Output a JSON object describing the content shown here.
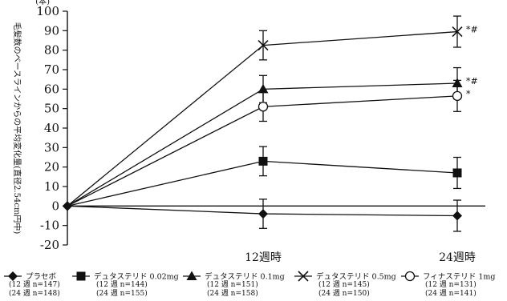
{
  "chart_data": {
    "type": "line",
    "title": "",
    "ylabel": "毛髪数のベースラインからの平均変化量(直径2.54cm円中)",
    "yunit": "(本)",
    "ylim": [
      -20,
      100
    ],
    "yticks": [
      -20,
      -10,
      0,
      10,
      20,
      30,
      40,
      50,
      60,
      70,
      80,
      90,
      100
    ],
    "x": [
      "",
      "12週時",
      "24週時"
    ],
    "grid": false,
    "legend_position": "bottom",
    "series": [
      {
        "name": "プラセボ",
        "marker": "diamond",
        "values": [
          0,
          -4,
          -5
        ],
        "errors": [
          0,
          7.5,
          8
        ],
        "n_labels": [
          "(12 週 n=147)",
          "(24 週 n=148)"
        ],
        "annotation": ""
      },
      {
        "name": "デュタステリド 0.02mg",
        "marker": "square",
        "values": [
          0,
          23,
          17
        ],
        "errors": [
          0,
          7.5,
          8
        ],
        "n_labels": [
          "(12 週 n=144)",
          "(24 週 n=155)"
        ],
        "annotation": ""
      },
      {
        "name": "デュタステリド 0.1mg",
        "marker": "triangle",
        "values": [
          0,
          60,
          63
        ],
        "errors": [
          0,
          7,
          8
        ],
        "n_labels": [
          "(12 週 n=151)",
          "(24 週 n=158)"
        ],
        "annotation": "*#"
      },
      {
        "name": "デュタステリド 0.5mg",
        "marker": "cross",
        "values": [
          0,
          82.5,
          89.5
        ],
        "errors": [
          0,
          7.5,
          8
        ],
        "n_labels": [
          "(12 週 n=145)",
          "(24 週 n=150)"
        ],
        "annotation": "*#"
      },
      {
        "name": "フィナステリド 1mg",
        "marker": "circle",
        "values": [
          0,
          51,
          56.5
        ],
        "errors": [
          0,
          7.5,
          8
        ],
        "n_labels": [
          "(12 週 n=131)",
          "(24 週 n=141)"
        ],
        "annotation": "*"
      }
    ]
  }
}
